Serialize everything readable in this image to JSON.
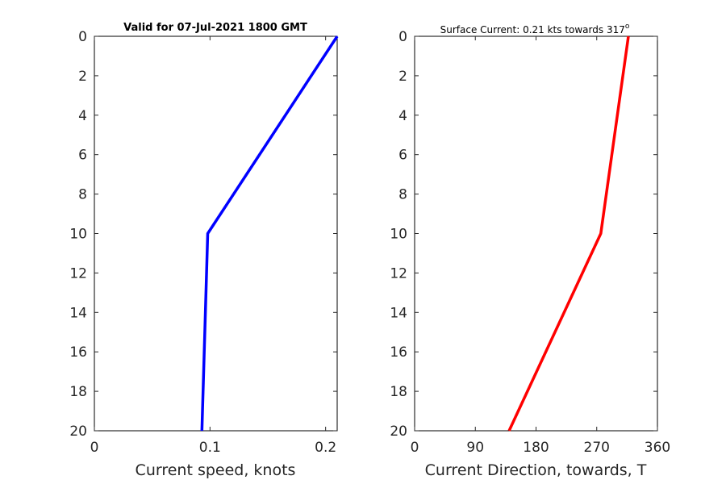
{
  "chart_data": [
    {
      "type": "line",
      "title": "Valid for 07-Jul-2021 1800 GMT",
      "xlabel": "Current speed, knots",
      "ylabel": "",
      "xlim": [
        0,
        0.21
      ],
      "ylim": [
        0,
        20
      ],
      "y_reversed": true,
      "xticks": [
        0,
        0.1,
        0.2
      ],
      "xtick_labels": [
        "0",
        "0.1",
        "0.2"
      ],
      "yticks": [
        0,
        2,
        4,
        6,
        8,
        10,
        12,
        14,
        16,
        18,
        20
      ],
      "ytick_labels": [
        "0",
        "2",
        "4",
        "6",
        "8",
        "10",
        "12",
        "14",
        "16",
        "18",
        "20"
      ],
      "grid": false,
      "color": "#0000ff",
      "series": [
        {
          "x": [
            0.21,
            0.098,
            0.093
          ],
          "y": [
            0,
            10,
            20
          ]
        }
      ]
    },
    {
      "type": "line",
      "title": "Surface Current: 0.21 kts towards 317",
      "title_superscript": "o",
      "xlabel": "Current Direction, towards, T",
      "ylabel": "",
      "xlim": [
        0,
        360
      ],
      "ylim": [
        0,
        20
      ],
      "y_reversed": true,
      "xticks": [
        0,
        90,
        180,
        270,
        360
      ],
      "xtick_labels": [
        "0",
        "90",
        "180",
        "270",
        "360"
      ],
      "yticks": [
        0,
        2,
        4,
        6,
        8,
        10,
        12,
        14,
        16,
        18,
        20
      ],
      "ytick_labels": [
        "0",
        "2",
        "4",
        "6",
        "8",
        "10",
        "12",
        "14",
        "16",
        "18",
        "20"
      ],
      "grid": false,
      "color": "#ff0000",
      "series": [
        {
          "x": [
            317,
            276,
            140
          ],
          "y": [
            0,
            10,
            20
          ]
        }
      ]
    }
  ]
}
